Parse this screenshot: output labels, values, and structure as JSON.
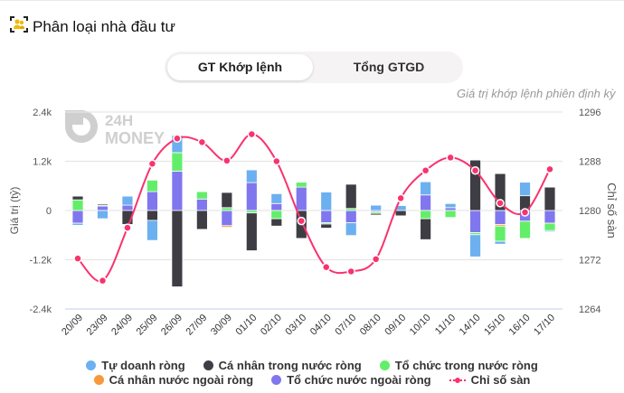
{
  "header": {
    "title": "Phân loại nhà đầu tư",
    "icon": "investor-group-icon"
  },
  "tabs": [
    {
      "label": "GT Khớp lệnh",
      "active": true
    },
    {
      "label": "Tổng GTGD",
      "active": false
    }
  ],
  "subtitle": "Giá trị khớp lệnh phiên định kỳ",
  "watermark": "24H MONEY",
  "chart_data": {
    "type": "bar",
    "stacked": true,
    "categories": [
      "20/09",
      "23/09",
      "24/09",
      "25/09",
      "26/09",
      "27/09",
      "30/09",
      "01/10",
      "02/10",
      "03/10",
      "04/10",
      "07/10",
      "08/10",
      "09/10",
      "10/10",
      "11/10",
      "14/10",
      "15/10",
      "16/10",
      "17/10"
    ],
    "ylabel": "Giá trị (tỷ)",
    "y2label": "Chỉ số sàn",
    "ylim": [
      -2400,
      2400
    ],
    "y2lim": [
      1264,
      1296
    ],
    "yticks": [
      "2.4k",
      "1.2k",
      "0",
      "-1.2k",
      "-2.4k"
    ],
    "y2ticks": [
      "1296",
      "1288",
      "1280",
      "1272",
      "1264"
    ],
    "grid": true,
    "legend_position": "bottom",
    "series": [
      {
        "name": "Tổ chức nước ngoài ròng",
        "color": "#8077ee",
        "values": [
          -310,
          110,
          130,
          460,
          960,
          280,
          -370,
          680,
          170,
          570,
          -300,
          -300,
          -30,
          0,
          380,
          70,
          -540,
          -340,
          -260,
          -310
        ]
      },
      {
        "name": "Cá nhân nước ngoài ròng",
        "color": "#f7993a",
        "values": [
          0,
          0,
          0,
          0,
          0,
          0,
          -40,
          0,
          0,
          0,
          0,
          0,
          0,
          0,
          0,
          0,
          0,
          -40,
          0,
          0
        ]
      },
      {
        "name": "Tổ chức trong nước ròng",
        "color": "#63ee6a",
        "values": [
          260,
          20,
          0,
          280,
          450,
          180,
          70,
          -60,
          -200,
          120,
          -30,
          50,
          -40,
          0,
          -200,
          -170,
          -50,
          -370,
          -420,
          -180
        ]
      },
      {
        "name": "Cá nhân trong nước ròng",
        "color": "#3d3d43",
        "values": [
          90,
          30,
          -340,
          -240,
          -1860,
          -460,
          370,
          -920,
          -180,
          -680,
          -100,
          590,
          -40,
          -130,
          -510,
          0,
          1230,
          900,
          360,
          570
        ]
      },
      {
        "name": "Tự doanh ròng",
        "color": "#6cb0f0",
        "values": [
          -50,
          -200,
          220,
          -490,
          420,
          0,
          0,
          310,
          240,
          0,
          450,
          -310,
          130,
          120,
          320,
          100,
          -540,
          -70,
          330,
          -30
        ]
      }
    ],
    "line": {
      "name": "Chỉ số sàn",
      "color": "#f8336e",
      "values": [
        1272.2,
        1268.6,
        1277.2,
        1287.6,
        1291.7,
        1291.1,
        1288.1,
        1292.4,
        1288.0,
        1278.3,
        1270.8,
        1270.1,
        1272.1,
        1282.0,
        1286.5,
        1288.6,
        1286.5,
        1281.2,
        1279.7,
        1286.7
      ]
    }
  },
  "legend": {
    "row1": [
      {
        "label": "Tự doanh ròng",
        "color": "#6cb0f0"
      },
      {
        "label": "Cá nhân trong nước ròng",
        "color": "#3d3d43"
      },
      {
        "label": "Tổ chức trong nước ròng",
        "color": "#63ee6a"
      }
    ],
    "row2": [
      {
        "label": "Cá nhân nước ngoài ròng",
        "color": "#f7993a"
      },
      {
        "label": "Tổ chức nước ngoài ròng",
        "color": "#8077ee"
      },
      {
        "label": "Chỉ số sàn",
        "color": "#f8336e"
      }
    ]
  }
}
